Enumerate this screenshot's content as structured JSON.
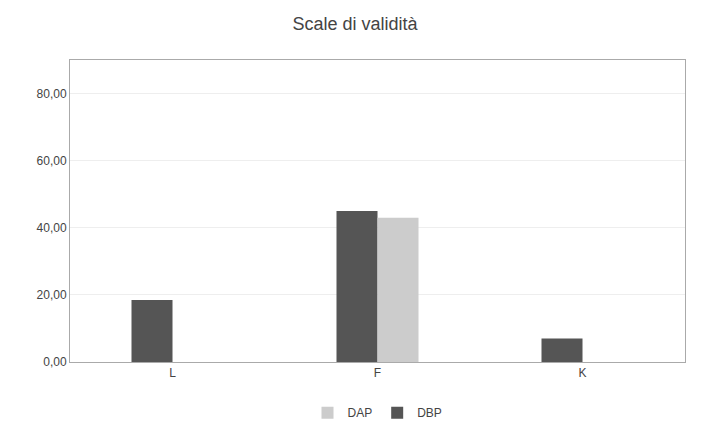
{
  "chart_data": {
    "type": "bar",
    "title": "Scale di validità",
    "categories": [
      "L",
      "F",
      "K"
    ],
    "series": [
      {
        "name": "DBP",
        "color": "#555555",
        "values": [
          18.5,
          45.0,
          7.0
        ]
      },
      {
        "name": "DAP",
        "color": "#cccccc",
        "values": [
          0.0,
          43.0,
          0.0
        ]
      }
    ],
    "ylim": [
      0,
      90
    ],
    "yticks": [
      {
        "value": 0,
        "label": "0,00"
      },
      {
        "value": 20,
        "label": "20,00"
      },
      {
        "value": 40,
        "label": "40,00"
      },
      {
        "value": 60,
        "label": "60,00"
      },
      {
        "value": 80,
        "label": "80,00"
      }
    ],
    "grid": true,
    "legend": "bottom"
  }
}
